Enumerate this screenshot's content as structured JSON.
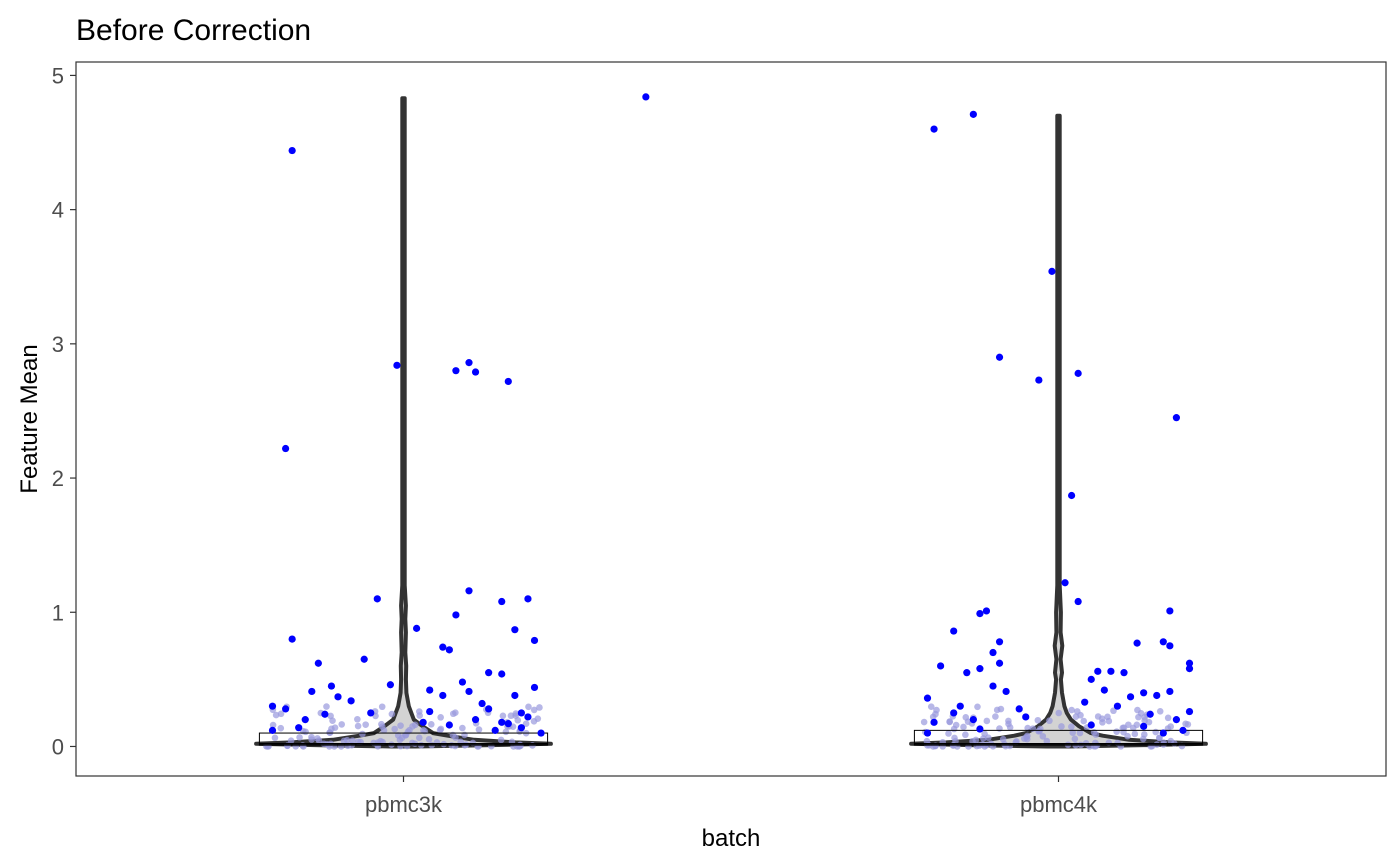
{
  "chart_data": {
    "type": "violin",
    "title": "Before Correction",
    "xlabel": "batch",
    "ylabel": "Feature Mean",
    "categories": [
      "pbmc3k",
      "pbmc4k"
    ],
    "ylim": [
      -0.22,
      5.1
    ],
    "yticks": [
      0,
      1,
      2,
      3,
      4,
      5
    ],
    "grid": false,
    "legend": "none",
    "colors": {
      "violin_outline": "#333333",
      "violin_fill": "#d3d3d3",
      "box_outline": "#000000",
      "outlier_points": "#0000ff",
      "dense_points": "#9999dd"
    },
    "violins": [
      {
        "category": "pbmc3k",
        "max": 4.83,
        "density": [
          [
            0.0,
            0.04
          ],
          [
            0.01,
            0.3
          ],
          [
            0.02,
            0.5
          ],
          [
            0.03,
            0.38
          ],
          [
            0.05,
            0.24
          ],
          [
            0.08,
            0.15
          ],
          [
            0.1,
            0.1
          ],
          [
            0.15,
            0.065
          ],
          [
            0.2,
            0.035
          ],
          [
            0.3,
            0.018
          ],
          [
            0.4,
            0.01
          ],
          [
            0.5,
            0.008
          ],
          [
            0.6,
            0.009
          ],
          [
            0.7,
            0.006
          ],
          [
            0.85,
            0.008
          ],
          [
            0.95,
            0.006
          ],
          [
            1.05,
            0.008
          ],
          [
            1.2,
            0.004
          ],
          [
            1.5,
            0.004
          ],
          [
            4.83,
            0.004
          ]
        ],
        "box": {
          "q1": 0.01,
          "median": 0.02,
          "q3": 0.1
        },
        "outliers": [
          [
            0.37,
            4.84
          ],
          [
            -0.17,
            4.44
          ],
          [
            -0.18,
            2.22
          ],
          [
            -0.01,
            2.84
          ],
          [
            0.1,
            2.86
          ],
          [
            0.11,
            2.79
          ],
          [
            0.08,
            2.8
          ],
          [
            0.16,
            2.72
          ],
          [
            0.19,
            1.1
          ],
          [
            0.15,
            1.08
          ],
          [
            0.1,
            1.16
          ],
          [
            -0.04,
            1.1
          ],
          [
            0.02,
            0.88
          ],
          [
            0.17,
            0.87
          ],
          [
            0.2,
            0.79
          ],
          [
            0.08,
            0.98
          ],
          [
            -0.17,
            0.8
          ],
          [
            -0.13,
            0.62
          ],
          [
            0.06,
            0.74
          ],
          [
            0.07,
            0.72
          ],
          [
            -0.06,
            0.65
          ],
          [
            -0.11,
            0.45
          ],
          [
            0.13,
            0.55
          ],
          [
            0.15,
            0.54
          ],
          [
            0.2,
            0.44
          ],
          [
            0.17,
            0.38
          ],
          [
            0.04,
            0.42
          ],
          [
            0.09,
            0.48
          ],
          [
            0.1,
            0.41
          ],
          [
            -0.14,
            0.41
          ],
          [
            -0.1,
            0.37
          ],
          [
            0.13,
            0.28
          ],
          [
            0.18,
            0.25
          ],
          [
            -0.2,
            0.3
          ],
          [
            -0.18,
            0.28
          ],
          [
            -0.05,
            0.25
          ],
          [
            0.11,
            0.2
          ],
          [
            0.15,
            0.18
          ],
          [
            0.19,
            0.22
          ],
          [
            -0.15,
            0.2
          ],
          [
            0.14,
            0.12
          ],
          [
            0.18,
            0.14
          ],
          [
            0.21,
            0.1
          ],
          [
            -0.2,
            0.12
          ],
          [
            -0.16,
            0.14
          ],
          [
            0.07,
            0.16
          ],
          [
            0.03,
            0.18
          ],
          [
            -0.08,
            0.34
          ],
          [
            -0.02,
            0.46
          ],
          [
            0.06,
            0.38
          ],
          [
            0.12,
            0.32
          ],
          [
            0.16,
            0.17
          ],
          [
            -0.12,
            0.24
          ],
          [
            0.04,
            0.26
          ]
        ]
      },
      {
        "category": "pbmc4k",
        "max": 4.7,
        "density": [
          [
            0.0,
            0.04
          ],
          [
            0.01,
            0.3
          ],
          [
            0.02,
            0.5
          ],
          [
            0.03,
            0.38
          ],
          [
            0.05,
            0.24
          ],
          [
            0.08,
            0.15
          ],
          [
            0.1,
            0.11
          ],
          [
            0.15,
            0.07
          ],
          [
            0.2,
            0.042
          ],
          [
            0.25,
            0.028
          ],
          [
            0.3,
            0.02
          ],
          [
            0.4,
            0.012
          ],
          [
            0.5,
            0.008
          ],
          [
            0.55,
            0.012
          ],
          [
            0.65,
            0.007
          ],
          [
            0.75,
            0.013
          ],
          [
            0.85,
            0.007
          ],
          [
            1.0,
            0.008
          ],
          [
            1.2,
            0.004
          ],
          [
            1.5,
            0.004
          ],
          [
            4.7,
            0.004
          ]
        ],
        "box": {
          "q1": 0.01,
          "median": 0.02,
          "q3": 0.12
        },
        "outliers": [
          [
            -0.19,
            4.6
          ],
          [
            -0.13,
            4.71
          ],
          [
            -0.09,
            2.9
          ],
          [
            -0.01,
            3.54
          ],
          [
            -0.03,
            2.73
          ],
          [
            0.03,
            2.78
          ],
          [
            0.18,
            2.45
          ],
          [
            0.02,
            1.87
          ],
          [
            0.01,
            1.22
          ],
          [
            0.03,
            1.08
          ],
          [
            -0.16,
            0.86
          ],
          [
            -0.12,
            0.99
          ],
          [
            -0.11,
            1.01
          ],
          [
            0.17,
            1.01
          ],
          [
            -0.09,
            0.78
          ],
          [
            -0.1,
            0.7
          ],
          [
            -0.09,
            0.62
          ],
          [
            -0.12,
            0.58
          ],
          [
            -0.18,
            0.6
          ],
          [
            0.16,
            0.78
          ],
          [
            0.17,
            0.75
          ],
          [
            0.12,
            0.77
          ],
          [
            0.2,
            0.62
          ],
          [
            0.2,
            0.58
          ],
          [
            0.06,
            0.56
          ],
          [
            0.08,
            0.56
          ],
          [
            0.1,
            0.55
          ],
          [
            0.05,
            0.5
          ],
          [
            0.07,
            0.42
          ],
          [
            -0.14,
            0.55
          ],
          [
            -0.2,
            0.36
          ],
          [
            -0.08,
            0.41
          ],
          [
            -0.1,
            0.45
          ],
          [
            0.13,
            0.4
          ],
          [
            0.15,
            0.38
          ],
          [
            0.17,
            0.41
          ],
          [
            0.11,
            0.37
          ],
          [
            0.09,
            0.3
          ],
          [
            0.2,
            0.26
          ],
          [
            -0.15,
            0.3
          ],
          [
            -0.16,
            0.25
          ],
          [
            -0.19,
            0.18
          ],
          [
            -0.13,
            0.2
          ],
          [
            -0.05,
            0.22
          ],
          [
            0.14,
            0.24
          ],
          [
            0.18,
            0.2
          ],
          [
            0.05,
            0.16
          ],
          [
            0.13,
            0.15
          ],
          [
            0.19,
            0.12
          ],
          [
            -0.12,
            0.13
          ],
          [
            -0.06,
            0.28
          ],
          [
            0.04,
            0.33
          ],
          [
            0.16,
            0.1
          ],
          [
            -0.2,
            0.1
          ]
        ]
      }
    ]
  }
}
